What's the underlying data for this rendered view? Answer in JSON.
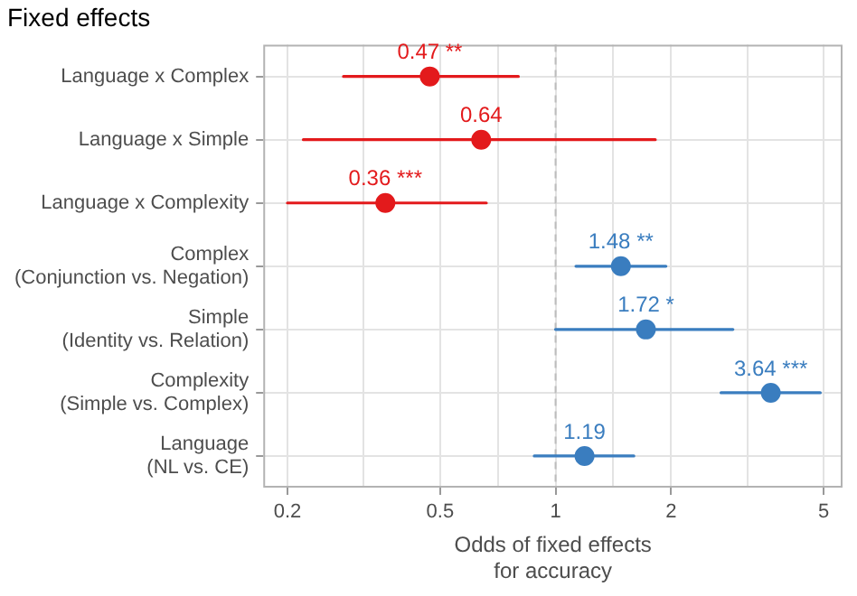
{
  "chart_data": {
    "type": "scatter",
    "orientation": "horizontal",
    "title": "Fixed effects",
    "xlabel": "Odds of fixed effects\nfor accuracy",
    "categories": [
      "Language x Complex",
      "Language x Simple",
      "Language x Complexity",
      "Complex\n(Conjunction vs. Negation)",
      "Simple\n(Identity vs. Relation)",
      "Complexity\n(Simple vs. Complex)",
      "Language\n(NL vs. CE)"
    ],
    "series": [
      {
        "color": "#e31a1c",
        "values": [
          0.47,
          0.64,
          0.36,
          null,
          null,
          null,
          null
        ],
        "errors": [
          [
            0.28,
            0.8
          ],
          [
            0.22,
            1.82
          ],
          [
            0.2,
            0.66
          ],
          null,
          null,
          null,
          null
        ],
        "value_labels": [
          "0.47 **",
          "0.64",
          "0.36 ***",
          null,
          null,
          null,
          null
        ]
      },
      {
        "color": "#3a7dbf",
        "values": [
          null,
          null,
          null,
          1.48,
          1.72,
          3.64,
          1.19
        ],
        "errors": [
          null,
          null,
          null,
          [
            1.13,
            1.94
          ],
          [
            1.0,
            2.9
          ],
          [
            2.7,
            4.9
          ],
          [
            0.88,
            1.6
          ]
        ],
        "value_labels": [
          null,
          null,
          null,
          "1.48 **",
          "1.72 *",
          "3.64 ***",
          "1.19"
        ]
      }
    ],
    "log": "x",
    "xlim": [
      0.173,
      5.6
    ],
    "xticks": [
      0.2,
      {
        "value": 0.316,
        "label": null
      },
      0.5,
      {
        "value": 0.707,
        "label": null
      },
      1,
      {
        "value": 1.414,
        "label": null
      },
      2,
      {
        "value": 3.162,
        "label": null
      },
      5
    ],
    "ref_lines": [
      {
        "axis": "x",
        "value": 1,
        "color": "#bdbdbd",
        "line_style": "dashed"
      }
    ],
    "grid": true,
    "legend": false,
    "marker": "circle"
  }
}
